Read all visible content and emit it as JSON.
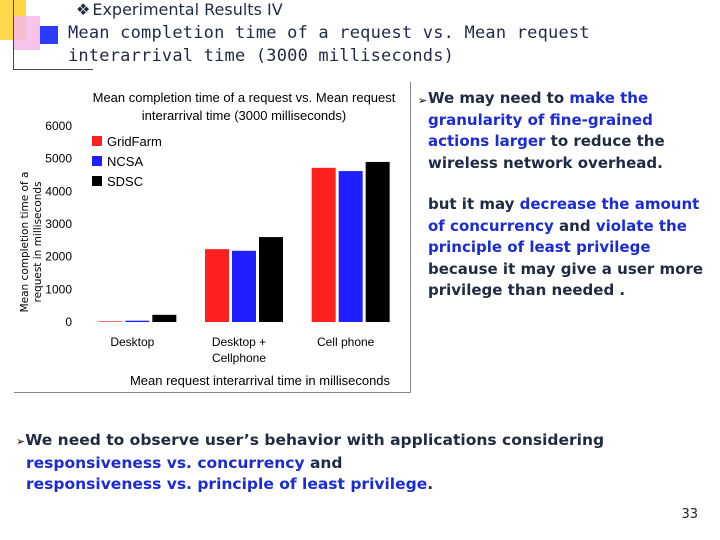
{
  "header": {
    "bullet_symbol": "❖",
    "section": "Experimental Results IV",
    "title": "Mean completion time of a request vs. Mean request interarrival time (3000 milliseconds)"
  },
  "chart_data": {
    "type": "bar",
    "title_line1": "Mean completion time of a request vs. Mean request",
    "title_line2": "interarrival time (3000 milliseconds)",
    "xlabel": "Mean request interarrival time in milliseconds",
    "ylabel_line1": "Mean completion time of a",
    "ylabel_line2": "request in milliseconds",
    "categories": [
      {
        "line1": "Desktop",
        "line2": ""
      },
      {
        "line1": "Desktop +",
        "line2": "Cellphone"
      },
      {
        "line1": "Cell phone",
        "line2": ""
      }
    ],
    "series": [
      {
        "name": "GridFarm",
        "color": "#ff2020",
        "values": [
          20,
          2230,
          4720
        ]
      },
      {
        "name": "NCSA",
        "color": "#1f1fff",
        "values": [
          40,
          2180,
          4620
        ]
      },
      {
        "name": "SDSC",
        "color": "#000000",
        "values": [
          220,
          2600,
          4900
        ]
      }
    ],
    "ylim": [
      0,
      6000
    ],
    "yticks": [
      0,
      1000,
      2000,
      3000,
      4000,
      5000,
      6000
    ],
    "legend_position": "top-left",
    "grid": false
  },
  "bullets": {
    "arrow": "➢",
    "b1_p1": "We may need to ",
    "b1_h1": "make the granularity of fine-grained actions larger",
    "b1_p2": " to reduce the wireless network overhead.",
    "b2_p1": "but it may ",
    "b2_h1": "decrease the amount of concurrency",
    "b2_p2": " and ",
    "b2_h2": "violate the principle of least privilege",
    "b2_p3": " because it may give a user more privilege than needed ."
  },
  "bottom": {
    "arrow": "➢",
    "p1": "We need to observe user’s behavior with applications considering ",
    "h1": "responsiveness vs. concurrency",
    "p2": " and ",
    "h2": "responsiveness vs. principle of least privilege",
    "p3": "."
  },
  "page_number": "33"
}
